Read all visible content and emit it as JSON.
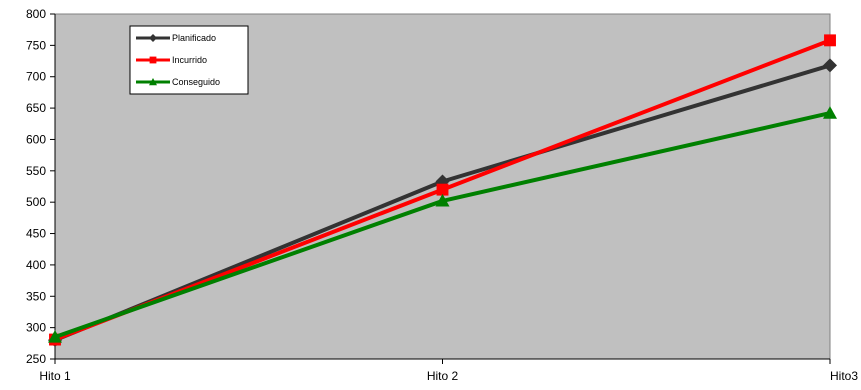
{
  "chart_data": {
    "type": "line",
    "title": "",
    "xlabel": "",
    "ylabel": "",
    "categories": [
      "Hito 1",
      "Hito 2",
      "Hito3"
    ],
    "ylim": [
      250,
      800
    ],
    "yticks": [
      250,
      300,
      350,
      400,
      450,
      500,
      550,
      600,
      650,
      700,
      750,
      800
    ],
    "grid": false,
    "plot_background": "#c0c0c0",
    "legend_position": "top-left",
    "series": [
      {
        "name": "Planificado",
        "values": [
          280,
          533,
          718
        ],
        "color": "#333333",
        "marker": "diamond"
      },
      {
        "name": "Incurrido",
        "values": [
          281,
          520,
          758
        ],
        "color": "#ff0000",
        "marker": "square"
      },
      {
        "name": "Conseguido",
        "values": [
          285,
          502,
          642
        ],
        "color": "#008000",
        "marker": "triangle"
      }
    ]
  }
}
